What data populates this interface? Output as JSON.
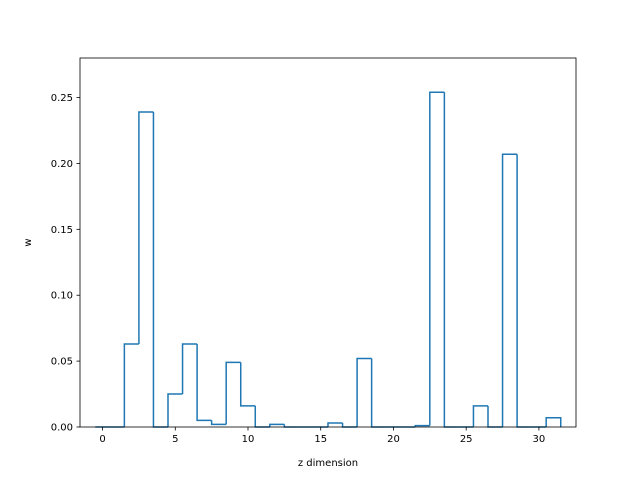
{
  "chart_data": {
    "type": "bar",
    "style": "step-outline",
    "title": "",
    "xlabel": "z dimension",
    "ylabel": "w",
    "xlim": [
      -1.55,
      32.55
    ],
    "ylim": [
      0,
      0.28
    ],
    "grid": false,
    "xticks": [
      0,
      5,
      10,
      15,
      20,
      25,
      30
    ],
    "xtick_labels": [
      "0",
      "5",
      "10",
      "15",
      "20",
      "25",
      "30"
    ],
    "yticks": [
      0,
      0.05,
      0.1,
      0.15,
      0.2,
      0.25
    ],
    "ytick_labels": [
      "0.00",
      "0.05",
      "0.10",
      "0.15",
      "0.20",
      "0.25"
    ],
    "line_color": "#1f77b4",
    "x": [
      0,
      1,
      2,
      3,
      4,
      5,
      6,
      7,
      8,
      9,
      10,
      11,
      12,
      13,
      14,
      15,
      16,
      17,
      18,
      19,
      20,
      21,
      22,
      23,
      24,
      25,
      26,
      27,
      28,
      29,
      30,
      31
    ],
    "values": [
      0.0,
      0.0,
      0.063,
      0.239,
      0.0,
      0.025,
      0.063,
      0.005,
      0.002,
      0.049,
      0.016,
      0.0,
      0.002,
      0.0,
      0.0,
      0.0,
      0.003,
      0.0,
      0.052,
      0.0,
      0.0,
      0.0,
      0.001,
      0.254,
      0.0,
      0.0,
      0.016,
      0.0,
      0.207,
      0.0,
      0.0,
      0.007
    ]
  }
}
